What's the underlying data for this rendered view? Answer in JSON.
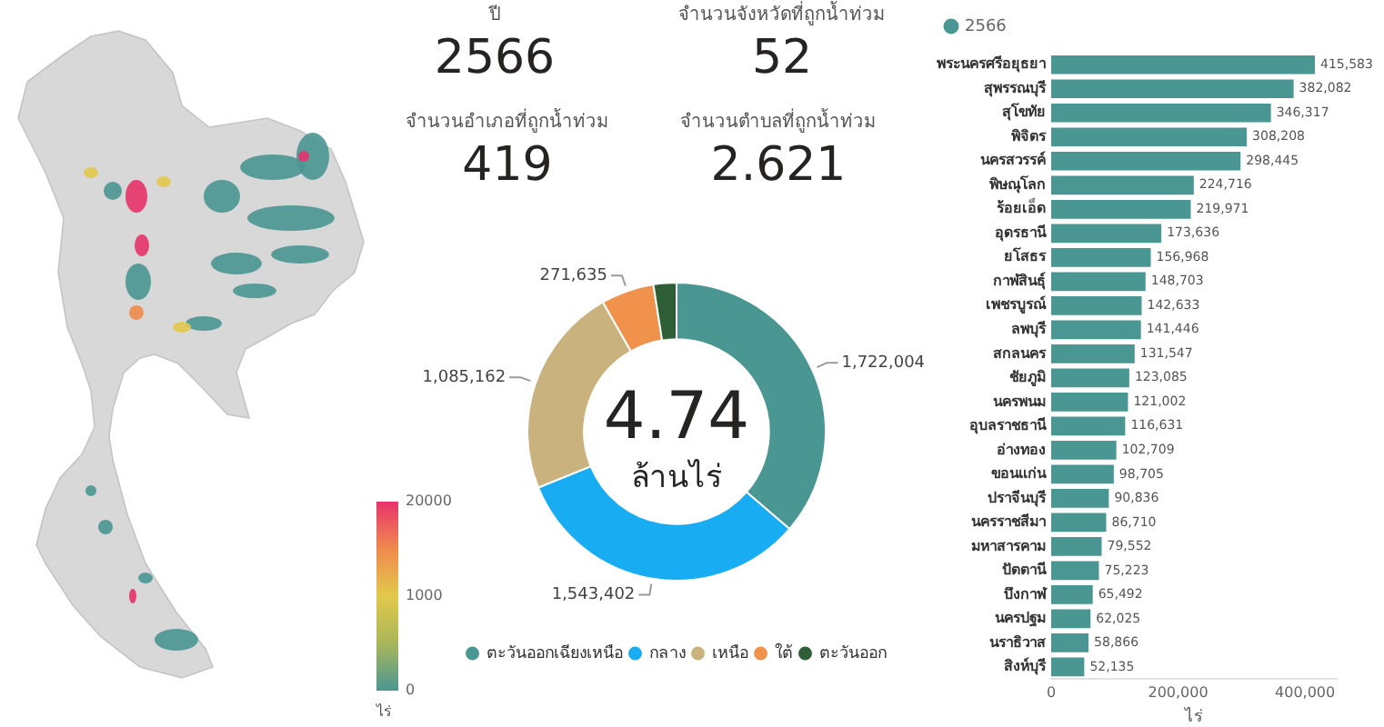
{
  "chart_data": [
    {
      "type": "other",
      "clabel": "ไร่",
      "annotations": [
        "20000",
        "1000",
        "0"
      ]
    },
    {
      "type": "other",
      "title": "ปี",
      "annotations": [
        "2566"
      ]
    },
    {
      "type": "other",
      "title": "จำนวนจังหวัดที่ถูกน้ำท่วม",
      "annotations": [
        "52"
      ]
    },
    {
      "type": "other",
      "title": "จำนวนอำเภอที่ถูกน้ำท่วม",
      "annotations": [
        "419"
      ]
    },
    {
      "type": "other",
      "title": "จำนวนตำบลที่ถูกน้ำท่วม",
      "annotations": [
        "2.621"
      ]
    },
    {
      "type": "donut",
      "categories": [
        "ตะวันออกเฉียงเหนือ",
        "กลาง",
        "เหนือ",
        "ใต้",
        "ตะวันออก"
      ],
      "values": [
        1722004,
        1543402,
        1085162,
        271635,
        118000
      ],
      "colors": [
        "#4a9692",
        "#18adf2",
        "#c9b27e",
        "#f0924b",
        "#2f5f36"
      ],
      "value_labels": [
        "1,722,004",
        "1,543,402",
        "1,085,162",
        "271,635",
        null
      ],
      "annotations": [
        "4.74",
        "ล้านไร่"
      ],
      "legend": "bottom"
    },
    {
      "type": "bar",
      "orientation": "horizontal",
      "categories": [
        "พระนครศรีอยุธยา",
        "สุพรรณบุรี",
        "สุโขทัย",
        "พิจิตร",
        "นครสวรรค์",
        "พิษณุโลก",
        "ร้อยเอ็ด",
        "อุดรธานี",
        "ยโสธร",
        "กาฬสินธุ์",
        "เพชรบูรณ์",
        "ลพบุรี",
        "สกลนคร",
        "ชัยภูมิ",
        "นครพนม",
        "อุบลราชธานี",
        "อ่างทอง",
        "ขอนแก่น",
        "ปราจีนบุรี",
        "นครราชสีมา",
        "มหาสารคาม",
        "ปัตตานี",
        "บึงกาฬ",
        "นครปฐม",
        "นราธิวาส",
        "สิงห์บุรี"
      ],
      "series": [
        {
          "name": "2566",
          "color": "#4a9692",
          "values": [
            415583,
            382082,
            346317,
            308208,
            298445,
            224716,
            219971,
            173636,
            156968,
            148703,
            142633,
            141446,
            131547,
            123085,
            121002,
            116631,
            102709,
            98705,
            90836,
            86710,
            79552,
            75223,
            65492,
            62025,
            58866,
            52135
          ],
          "value_labels": [
            "415,583",
            "382,082",
            "346,317",
            "308,208",
            "298,445",
            "224,716",
            "219,971",
            "173,636",
            "156,968",
            "148,703",
            "142,633",
            "141,446",
            "131,547",
            "123,085",
            "121,002",
            "116,631",
            "102,709",
            "98,705",
            "90,836",
            "86,710",
            "79,552",
            "75,223",
            "65,492",
            "62,025",
            "58,866",
            "52,135"
          ]
        }
      ],
      "xlim": [
        0,
        450000
      ],
      "xticks": [
        0,
        {
          "value": 200000,
          "label": "200,000"
        },
        {
          "value": 400000,
          "label": "400,000"
        }
      ],
      "xlabel": "ไร่",
      "legend": "top left",
      "grid": false
    }
  ]
}
